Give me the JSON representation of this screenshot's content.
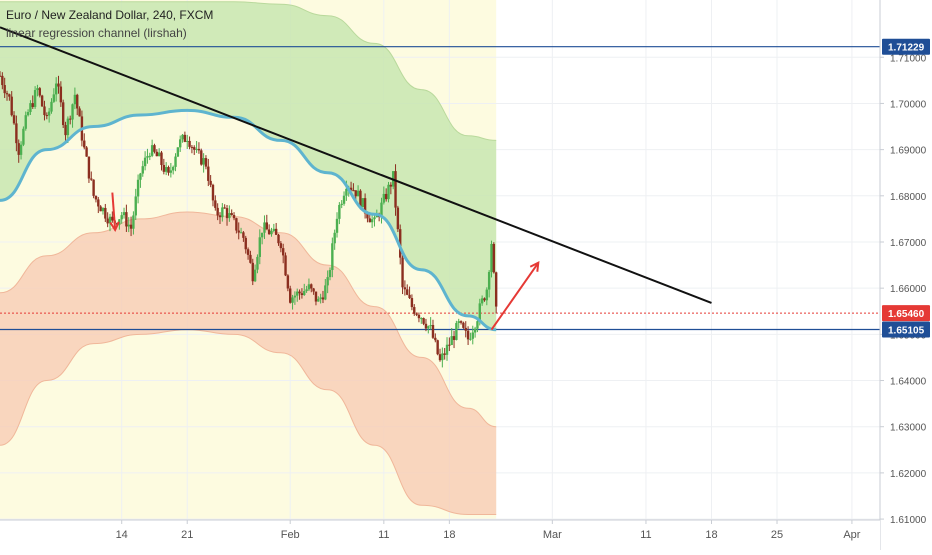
{
  "chart_data": {
    "type": "candlestick",
    "title": "Euro / New Zealand Dollar, 240, FXCM",
    "indicator": "linear regression channel (lirshah)",
    "colors": {
      "up": "#53b987",
      "down": "#eb4d5c",
      "candle_body_up": "#6ba583",
      "candle_body_down": "#d75442",
      "regression_mid": "#5eb4cf",
      "upper_band_fill": "#c8e6b0",
      "lower_band_fill": "#f8cdb5",
      "trendline": "#111111",
      "horizontal_line": "#1f4e96",
      "last_price": "#e53935",
      "arrow": "#e53935",
      "background_zone": "#fdfbe0"
    },
    "y_axis": {
      "ylim": [
        1.6098,
        1.7224
      ],
      "ticks": [
        "1.71000",
        "1.70000",
        "1.69000",
        "1.68000",
        "1.67000",
        "1.66000",
        "1.65000",
        "1.64000",
        "1.63000",
        "1.62000",
        "1.61000"
      ],
      "tick_values": [
        1.71,
        1.7,
        1.69,
        1.68,
        1.67,
        1.66,
        1.65,
        1.64,
        1.63,
        1.62,
        1.61
      ]
    },
    "x_axis": {
      "ticks": [
        "14",
        "21",
        "Feb",
        "11",
        "18",
        "Mar",
        "11",
        "18",
        "25",
        "Apr"
      ],
      "tick_days": [
        13,
        20,
        31,
        41,
        48,
        59,
        69,
        76,
        83,
        91
      ]
    },
    "price_labels": [
      {
        "text": "1.71229",
        "value": 1.71229,
        "color": "#1f4e96"
      },
      {
        "text": "1.65460",
        "value": 1.6546,
        "color": "#e53935"
      },
      {
        "text": "1.65105",
        "value": 1.65105,
        "color": "#1f4e96"
      }
    ],
    "horizontal_lines": [
      1.71229,
      1.65105
    ],
    "last_price": 1.6546,
    "trendline": {
      "start": [
        0,
        1.7165
      ],
      "end": [
        76,
        1.6568
      ]
    },
    "projection_arrow": {
      "from": [
        52.5,
        1.651
      ],
      "to": [
        57.5,
        1.6655
      ]
    },
    "down_arrow": {
      "from": [
        12.0,
        1.6807
      ],
      "to": [
        12.3,
        1.6726
      ]
    },
    "close_path": [
      [
        0,
        1.706
      ],
      [
        1,
        1.701
      ],
      [
        2,
        1.69
      ],
      [
        3,
        1.698
      ],
      [
        4,
        1.703
      ],
      [
        5,
        1.696
      ],
      [
        6,
        1.705
      ],
      [
        7,
        1.694
      ],
      [
        8,
        1.702
      ],
      [
        9,
        1.69
      ],
      [
        10,
        1.68
      ],
      [
        11,
        1.677
      ],
      [
        12,
        1.674
      ],
      [
        13,
        1.676
      ],
      [
        14,
        1.673
      ],
      [
        15,
        1.685
      ],
      [
        16,
        1.69
      ],
      [
        17,
        1.688
      ],
      [
        18,
        1.684
      ],
      [
        19,
        1.691
      ],
      [
        20,
        1.693
      ],
      [
        21,
        1.689
      ],
      [
        22,
        1.687
      ],
      [
        23,
        1.676
      ],
      [
        24,
        1.677
      ],
      [
        25,
        1.674
      ],
      [
        26,
        1.671
      ],
      [
        27,
        1.663
      ],
      [
        28,
        1.673
      ],
      [
        29,
        1.672
      ],
      [
        30,
        1.67
      ],
      [
        31,
        1.658
      ],
      [
        32,
        1.659
      ],
      [
        33,
        1.66
      ],
      [
        34,
        1.657
      ],
      [
        35,
        1.661
      ],
      [
        36,
        1.676
      ],
      [
        37,
        1.683
      ],
      [
        38,
        1.681
      ],
      [
        39,
        1.677
      ],
      [
        40,
        1.674
      ],
      [
        41,
        1.679
      ],
      [
        42,
        1.684
      ],
      [
        43,
        1.66
      ],
      [
        44,
        1.656
      ],
      [
        45,
        1.654
      ],
      [
        46,
        1.651
      ],
      [
        47,
        1.644
      ],
      [
        48,
        1.648
      ],
      [
        49,
        1.652
      ],
      [
        50,
        1.649
      ],
      [
        51,
        1.654
      ],
      [
        52,
        1.66
      ],
      [
        52.5,
        1.67
      ],
      [
        53,
        1.6546
      ]
    ],
    "regression_mid": [
      [
        0,
        1.679
      ],
      [
        5,
        1.69
      ],
      [
        10,
        1.695
      ],
      [
        15,
        1.6975
      ],
      [
        20,
        1.6985
      ],
      [
        25,
        1.697
      ],
      [
        30,
        1.692
      ],
      [
        35,
        1.685
      ],
      [
        40,
        1.676
      ],
      [
        45,
        1.664
      ],
      [
        50,
        1.654
      ],
      [
        53,
        1.651
      ]
    ],
    "upper_band": [
      [
        0,
        1.722
      ],
      [
        5,
        1.722
      ],
      [
        10,
        1.722
      ],
      [
        15,
        1.722
      ],
      [
        20,
        1.722
      ],
      [
        25,
        1.722
      ],
      [
        30,
        1.7215
      ],
      [
        35,
        1.719
      ],
      [
        40,
        1.713
      ],
      [
        45,
        1.703
      ],
      [
        50,
        1.693
      ],
      [
        53,
        1.692
      ]
    ],
    "lower_band": [
      [
        0,
        1.659
      ],
      [
        5,
        1.667
      ],
      [
        10,
        1.672
      ],
      [
        15,
        1.675
      ],
      [
        20,
        1.6765
      ],
      [
        25,
        1.6755
      ],
      [
        30,
        1.672
      ],
      [
        35,
        1.665
      ],
      [
        40,
        1.656
      ],
      [
        45,
        1.645
      ],
      [
        50,
        1.634
      ],
      [
        53,
        1.63
      ]
    ],
    "lower_outer_band": [
      [
        0,
        1.626
      ],
      [
        5,
        1.64
      ],
      [
        10,
        1.648
      ],
      [
        15,
        1.65
      ],
      [
        20,
        1.651
      ],
      [
        25,
        1.65
      ],
      [
        30,
        1.646
      ],
      [
        35,
        1.638
      ],
      [
        40,
        1.626
      ],
      [
        45,
        1.613
      ],
      [
        50,
        1.611
      ],
      [
        53,
        1.611
      ]
    ],
    "background_zone_x": [
      0,
      53
    ],
    "grid": true,
    "x_range": [
      0,
      94
    ]
  }
}
